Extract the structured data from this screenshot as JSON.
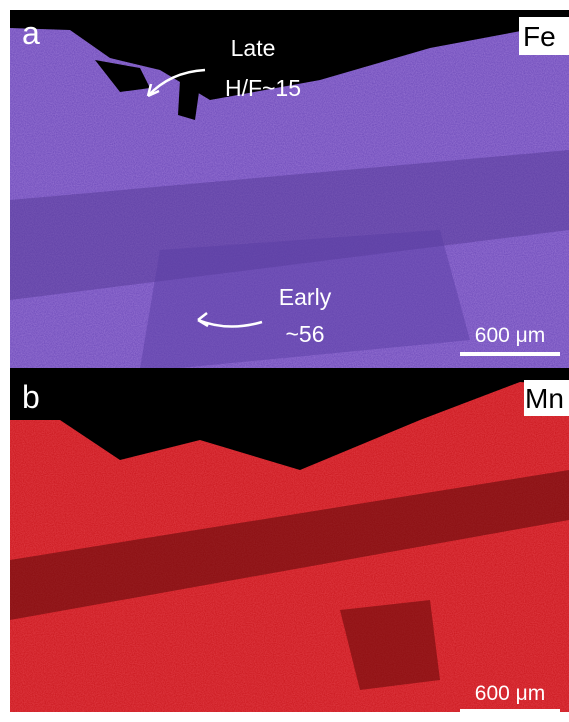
{
  "panels": [
    {
      "label": "a",
      "element": "Fe",
      "annotations": [
        {
          "lines": [
            "Late",
            "H/F~15"
          ]
        },
        {
          "lines": [
            "Early",
            "~56"
          ]
        }
      ],
      "scale_bar": "600 μm"
    },
    {
      "label": "b",
      "element": "Mn",
      "scale_bar": "600 μm"
    }
  ]
}
